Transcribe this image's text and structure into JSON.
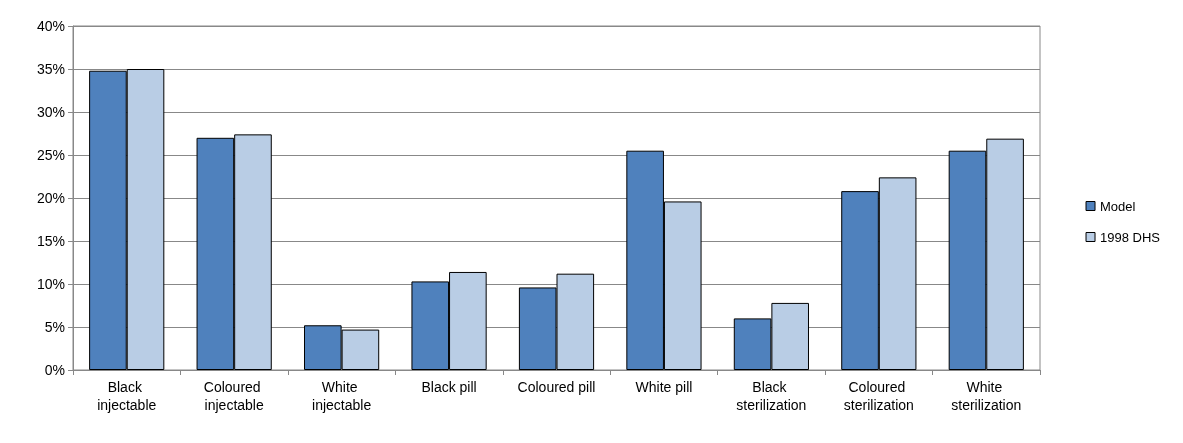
{
  "chart_data": {
    "type": "bar",
    "categories": [
      "Black injectable",
      "Coloured injectable",
      "White injectable",
      "Black pill",
      "Coloured pill",
      "White pill",
      "Black sterilization",
      "Coloured sterilization",
      "White sterilization"
    ],
    "series": [
      {
        "name": "Model",
        "color": "#4f81bd",
        "values": [
          34.8,
          27.0,
          5.2,
          10.3,
          9.6,
          25.5,
          6.0,
          20.8,
          25.5
        ]
      },
      {
        "name": "1998 DHS",
        "color": "#b9cde5",
        "values": [
          35.0,
          27.4,
          4.7,
          11.4,
          11.2,
          19.6,
          7.8,
          22.4,
          26.9
        ]
      }
    ],
    "ylim": [
      0,
      40
    ],
    "yticks": [
      {
        "value": 0,
        "label": "0%"
      },
      {
        "value": 5,
        "label": "5%"
      },
      {
        "value": 10,
        "label": "10%"
      },
      {
        "value": 15,
        "label": "15%"
      },
      {
        "value": 20,
        "label": "20%"
      },
      {
        "value": 25,
        "label": "25%"
      },
      {
        "value": 30,
        "label": "30%"
      },
      {
        "value": 35,
        "label": "35%"
      },
      {
        "value": 40,
        "label": "40%"
      }
    ],
    "grid": "y",
    "legend": "right"
  }
}
